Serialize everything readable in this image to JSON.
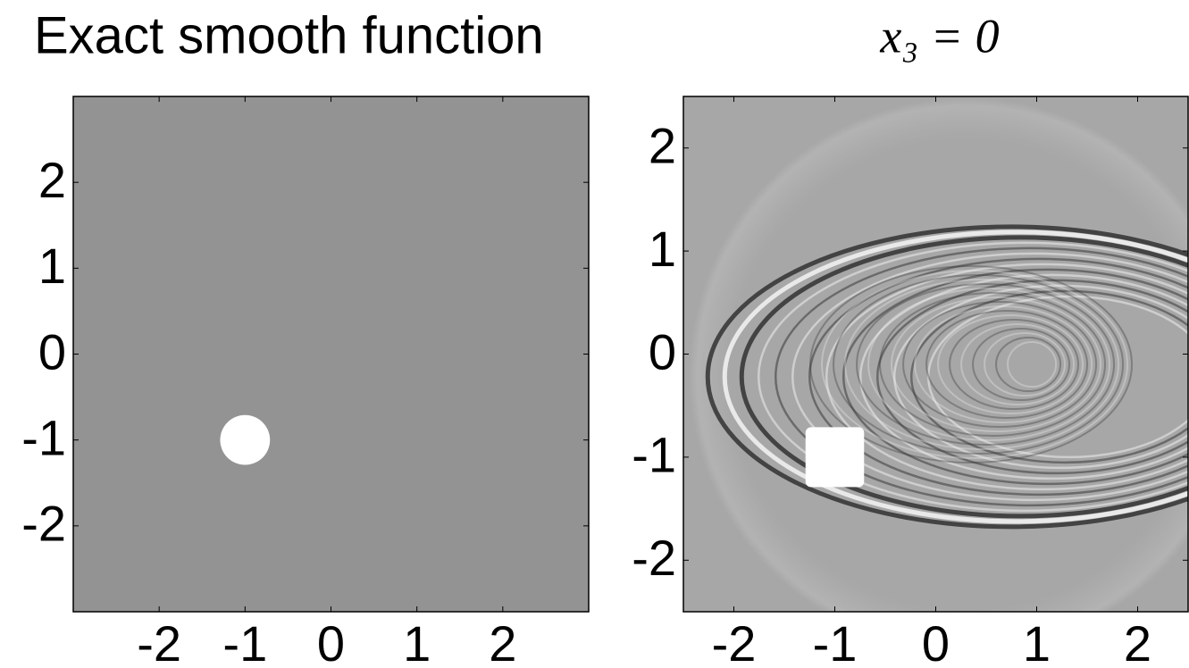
{
  "chart_data": [
    {
      "type": "image",
      "title": "Exact smooth function",
      "xlim": [
        -3,
        3
      ],
      "ylim": [
        -3,
        3
      ],
      "xticks": [
        -2,
        -1,
        0,
        1,
        2
      ],
      "yticks": [
        -2,
        -1,
        0,
        1,
        2
      ],
      "background": "#939393",
      "markers": [
        {
          "shape": "circle",
          "x": -1,
          "y": -1,
          "r": 0.29,
          "color": "#ffffff"
        }
      ]
    },
    {
      "type": "image",
      "title": "x₃ = 0",
      "xlim": [
        -2.5,
        2.5
      ],
      "ylim": [
        -2.5,
        2.5
      ],
      "xticks": [
        -2,
        -1,
        0,
        1,
        2
      ],
      "yticks": [
        -2,
        -1,
        0,
        1,
        2
      ],
      "background": "#a7a7a7",
      "markers": [
        {
          "shape": "square",
          "x": -1,
          "y": -1,
          "r": 0.29,
          "color": "#ffffff"
        }
      ]
    }
  ]
}
